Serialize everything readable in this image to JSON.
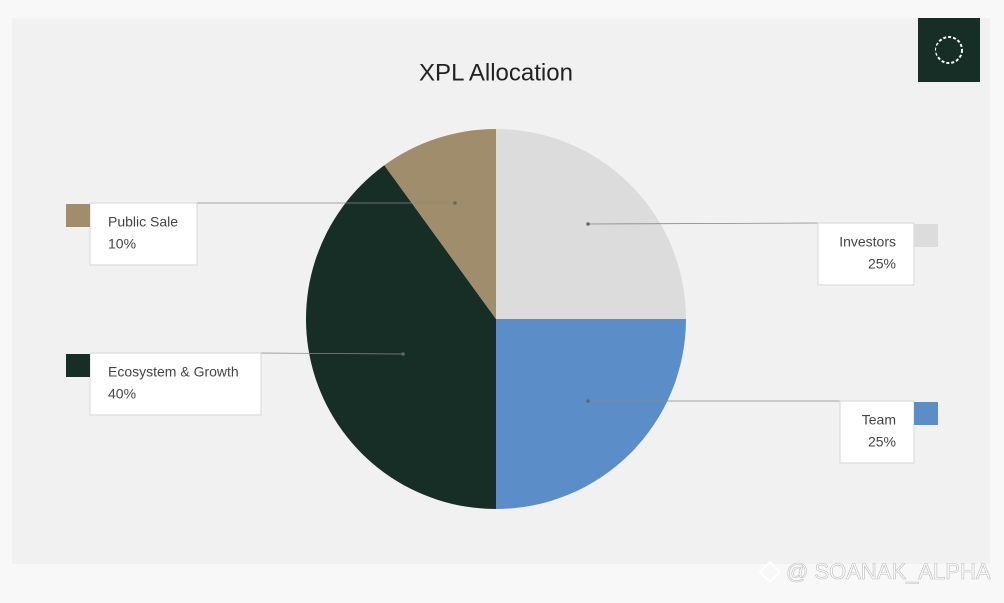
{
  "chart_data": {
    "type": "pie",
    "title": "XPL Allocation",
    "categories": [
      "Investors",
      "Team",
      "Ecosystem & Growth",
      "Public Sale"
    ],
    "values": [
      25,
      25,
      40,
      10
    ],
    "value_labels": [
      "25%",
      "25%",
      "40%",
      "10%"
    ],
    "colors": [
      "#dcdcdc",
      "#5b8ec9",
      "#172e27",
      "#9f8d6c"
    ]
  },
  "watermark": "@ SOANAK_ALPHA"
}
